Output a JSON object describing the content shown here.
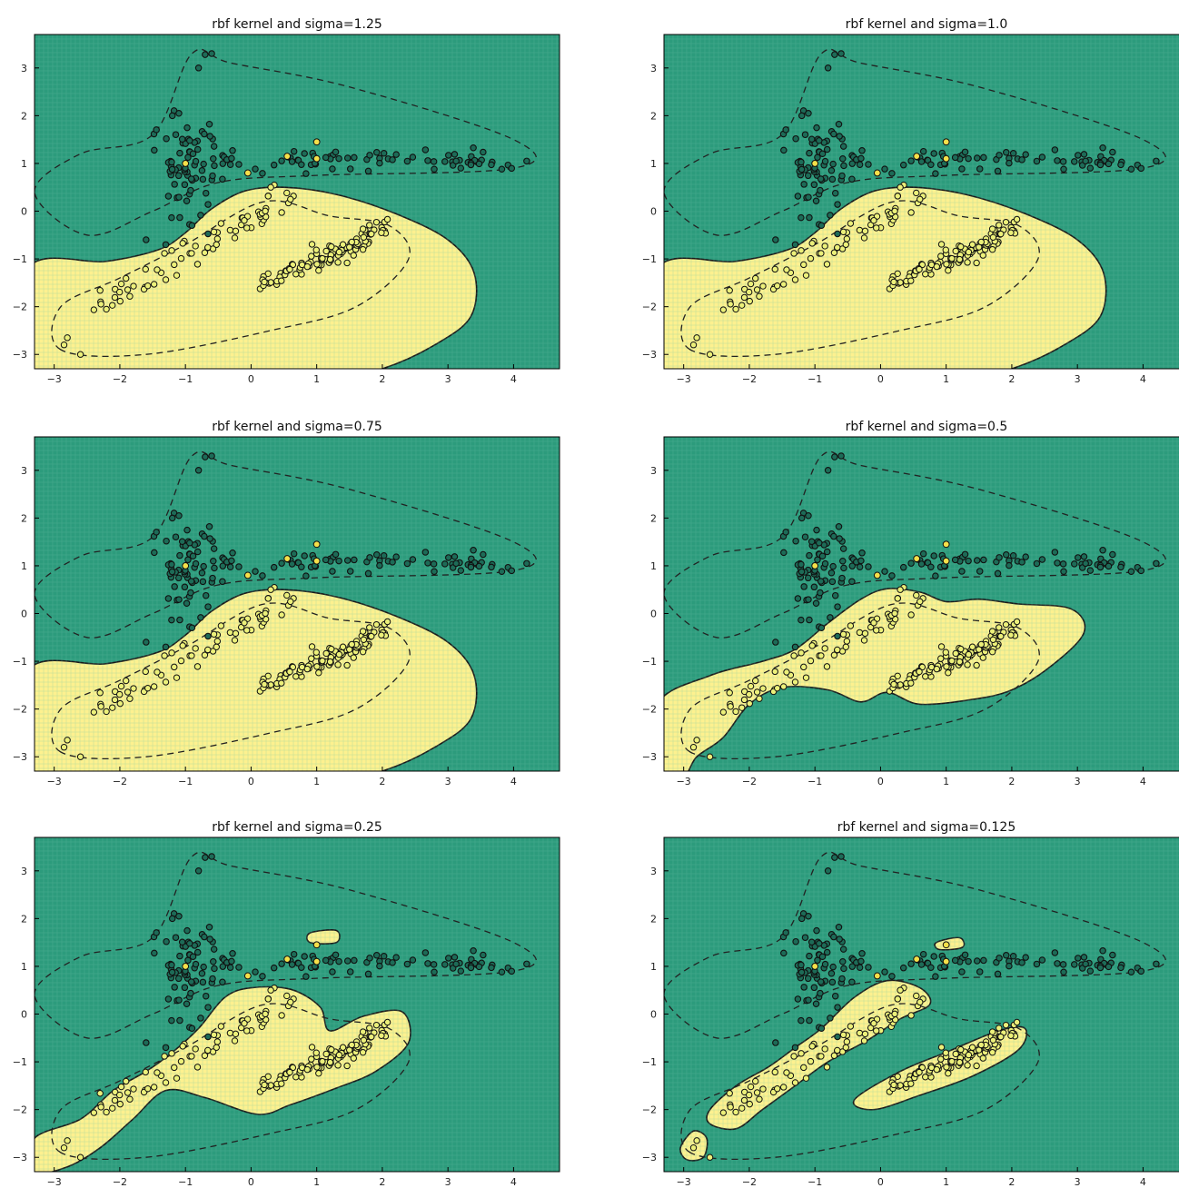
{
  "colors": {
    "background_class": "#2c9b7c",
    "region_class": "#fdf18f",
    "grid": "#6fc2a9",
    "point_dark": "#1d6b57",
    "point_light": "#ecf07a",
    "edge": "#111111"
  },
  "chart_data": [
    {
      "type": "scatter",
      "title": "rbf kernel and sigma=1.25",
      "xlim": [
        -3.3,
        4.7
      ],
      "ylim": [
        -3.3,
        3.7
      ],
      "xticks": [
        -3,
        -2,
        -1,
        0,
        1,
        2,
        3,
        4
      ],
      "yticks": [
        -3,
        -2,
        -1,
        0,
        1,
        2,
        3
      ],
      "grid": true,
      "decision_region": "smooth"
    },
    {
      "type": "scatter",
      "title": "rbf kernel and sigma=1.0",
      "xlim": [
        -3.3,
        4.7
      ],
      "ylim": [
        -3.3,
        3.7
      ],
      "xticks": [
        -3,
        -2,
        -1,
        0,
        1,
        2,
        3,
        4
      ],
      "yticks": [
        -3,
        -2,
        -1,
        0,
        1,
        2,
        3
      ],
      "grid": true,
      "decision_region": "smooth"
    },
    {
      "type": "scatter",
      "title": "rbf kernel and sigma=0.75",
      "xlim": [
        -3.3,
        4.7
      ],
      "ylim": [
        -3.3,
        3.7
      ],
      "xticks": [
        -3,
        -2,
        -1,
        0,
        1,
        2,
        3,
        4
      ],
      "yticks": [
        -3,
        -2,
        -1,
        0,
        1,
        2,
        3
      ],
      "grid": true,
      "decision_region": "smooth"
    },
    {
      "type": "scatter",
      "title": "rbf kernel and sigma=0.5",
      "xlim": [
        -3.3,
        4.7
      ],
      "ylim": [
        -3.3,
        3.7
      ],
      "xticks": [
        -3,
        -2,
        -1,
        0,
        1,
        2,
        3,
        4
      ],
      "yticks": [
        -3,
        -2,
        -1,
        0,
        1,
        2,
        3
      ],
      "grid": true,
      "decision_region": "wavy"
    },
    {
      "type": "scatter",
      "title": "rbf kernel and sigma=0.25",
      "xlim": [
        -3.3,
        4.7
      ],
      "ylim": [
        -3.3,
        3.7
      ],
      "xticks": [
        -3,
        -2,
        -1,
        0,
        1,
        2,
        3,
        4
      ],
      "yticks": [
        -3,
        -2,
        -1,
        0,
        1,
        2,
        3
      ],
      "grid": true,
      "decision_region": "blobs"
    },
    {
      "type": "scatter",
      "title": "rbf kernel and sigma=0.125",
      "xlim": [
        -3.3,
        4.7
      ],
      "ylim": [
        -3.3,
        3.7
      ],
      "xticks": [
        -3,
        -2,
        -1,
        0,
        1,
        2,
        3,
        4
      ],
      "yticks": [
        -3,
        -2,
        -1,
        0,
        1,
        2,
        3
      ],
      "grid": true,
      "decision_region": "islands"
    }
  ]
}
